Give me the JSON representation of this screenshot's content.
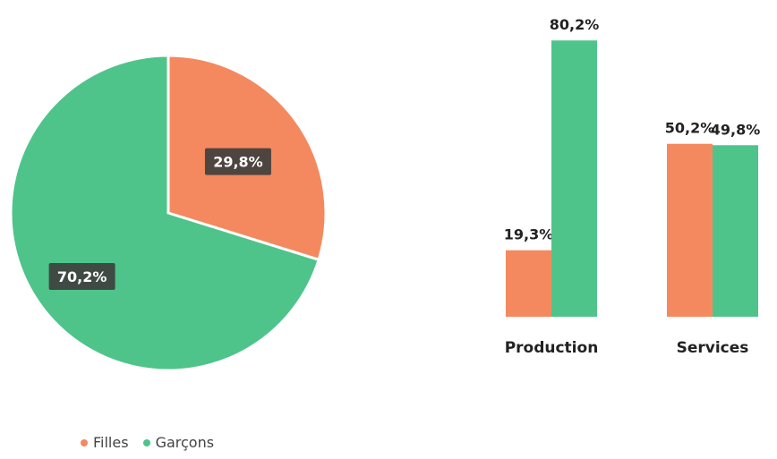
{
  "colors": {
    "filles": "#f4895f",
    "garcons": "#4ec48b"
  },
  "legend": {
    "items": [
      {
        "name": "Filles",
        "color": "#f4895f"
      },
      {
        "name": "Garçons",
        "color": "#4ec48b"
      }
    ]
  },
  "chart_data": [
    {
      "type": "pie",
      "series": [
        {
          "name": "Filles",
          "value": 29.8,
          "label": "29,8%"
        },
        {
          "name": "Garçons",
          "value": 70.2,
          "label": "70,2%"
        }
      ],
      "title": ""
    },
    {
      "type": "bar",
      "categories": [
        "Production",
        "Services"
      ],
      "series": [
        {
          "name": "Filles",
          "values": [
            19.3,
            50.2
          ],
          "labels": [
            "19,3%",
            "50,2%"
          ]
        },
        {
          "name": "Garçons",
          "values": [
            80.2,
            49.8
          ],
          "labels": [
            "80,2%",
            "49,8%"
          ]
        }
      ],
      "title": "",
      "ylim": [
        0,
        100
      ],
      "grid": false
    }
  ]
}
